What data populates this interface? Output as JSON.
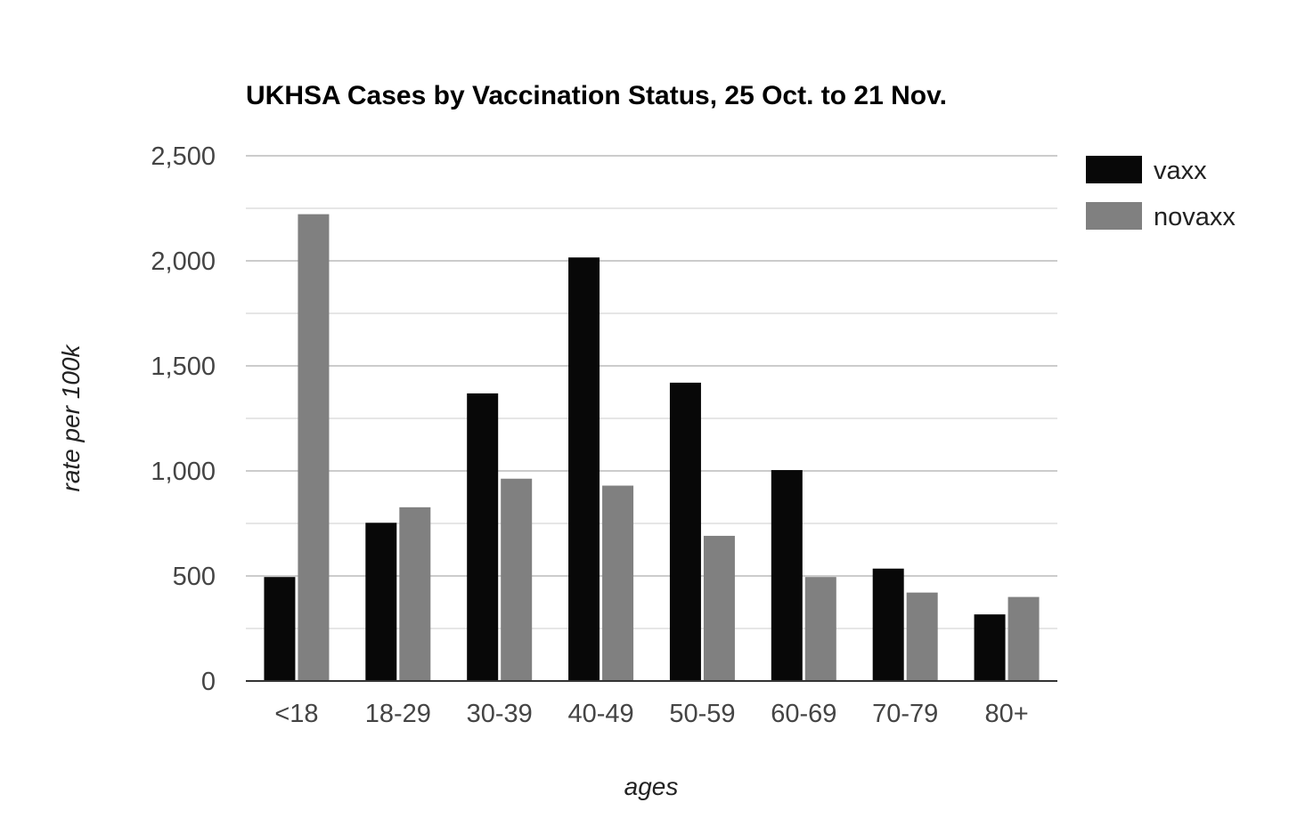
{
  "chart_data": {
    "type": "bar",
    "title": "UKHSA Cases by Vaccination Status, 25 Oct. to 21 Nov.",
    "xlabel": "ages",
    "ylabel": "rate per 100k",
    "categories": [
      "<18",
      "18-29",
      "30-39",
      "40-49",
      "50-59",
      "60-69",
      "70-79",
      "80+"
    ],
    "series": [
      {
        "name": "vaxx",
        "color": "#080808",
        "values": [
          495,
          753,
          1369,
          2016,
          1420,
          1004,
          535,
          317
        ]
      },
      {
        "name": "novaxx",
        "color": "#808080",
        "values": [
          2222,
          827,
          963,
          930,
          691,
          495,
          421,
          400
        ]
      }
    ],
    "ylim": [
      0,
      2500
    ],
    "yticks": [
      0,
      500,
      1000,
      1500,
      2000,
      2500
    ],
    "ytick_labels": [
      "0",
      "500",
      "1,000",
      "1,500",
      "2,000",
      "2,500"
    ],
    "grid": true,
    "legend_position": "right"
  }
}
